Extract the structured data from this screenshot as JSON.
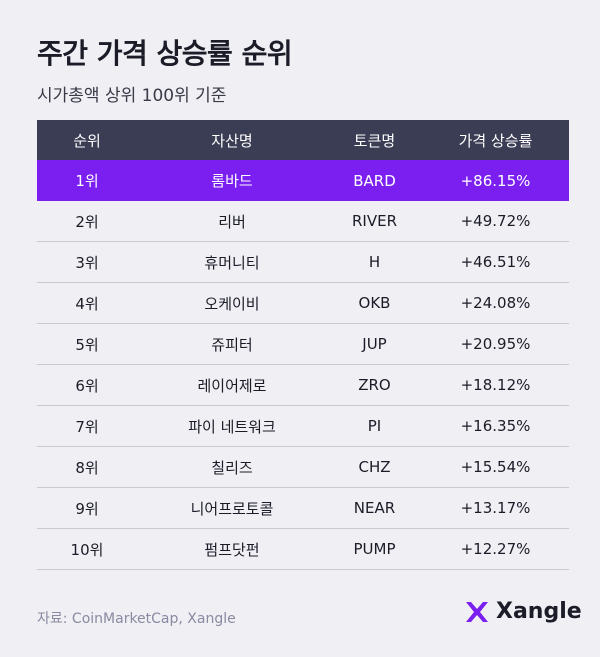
{
  "header": {
    "title": "주간 가격 상승률 순위",
    "subtitle": "시가총액 상위 100위 기준"
  },
  "table": {
    "columns": [
      "순위",
      "자산명",
      "토큰명",
      "가격 상승률"
    ],
    "rows": [
      [
        "1위",
        "롬바드",
        "BARD",
        "+86.15%"
      ],
      [
        "2위",
        "리버",
        "RIVER",
        "+49.72%"
      ],
      [
        "3위",
        "휴머니티",
        "H",
        "+46.51%"
      ],
      [
        "4위",
        "오케이비",
        "OKB",
        "+24.08%"
      ],
      [
        "5위",
        "쥬피터",
        "JUP",
        "+20.95%"
      ],
      [
        "6위",
        "레이어제로",
        "ZRO",
        "+18.12%"
      ],
      [
        "7위",
        "파이 네트워크",
        "PI",
        "+16.35%"
      ],
      [
        "8위",
        "칠리즈",
        "CHZ",
        "+15.54%"
      ],
      [
        "9위",
        "니어프로토콜",
        "NEAR",
        "+13.17%"
      ],
      [
        "10위",
        "펌프닷펀",
        "PUMP",
        "+12.27%"
      ]
    ]
  },
  "footer": {
    "source": "자료: CoinMarketCap, Xangle",
    "logo": "Xangle"
  }
}
